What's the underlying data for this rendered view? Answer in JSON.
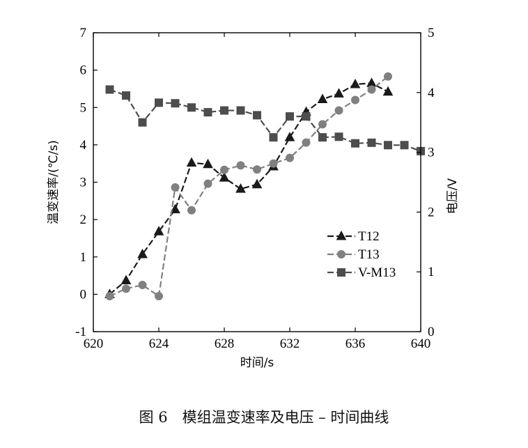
{
  "caption": "图 6　模组温变速率及电压 – 时间曲线",
  "chart_data": {
    "type": "line",
    "xlabel": "时间/s",
    "ylabel": "温变速率/(℃/s)",
    "y2label": "电压/V",
    "xlim": [
      620,
      640
    ],
    "ylim": [
      -1,
      7
    ],
    "y2lim": [
      0,
      5
    ],
    "xticks": [
      620,
      624,
      628,
      632,
      636,
      640
    ],
    "yticks": [
      -1,
      0,
      1,
      2,
      3,
      4,
      5,
      6,
      7
    ],
    "y2ticks": [
      0,
      1,
      2,
      3,
      4,
      5
    ],
    "legend_position": "center-right",
    "series": [
      {
        "name": "T12",
        "axis": "left",
        "marker": "triangle",
        "color": "#1a1a1a",
        "x": [
          621,
          622,
          623,
          624,
          625,
          626,
          627,
          628,
          629,
          630,
          631,
          632,
          633,
          634,
          635,
          636,
          637,
          638
        ],
        "y": [
          0.0,
          0.37,
          1.07,
          1.68,
          2.27,
          3.52,
          3.48,
          3.12,
          2.82,
          2.94,
          3.42,
          4.2,
          4.88,
          5.22,
          5.37,
          5.62,
          5.65,
          5.42
        ]
      },
      {
        "name": "T13",
        "axis": "left",
        "marker": "circle",
        "color": "#808080",
        "x": [
          621,
          622,
          623,
          624,
          625,
          626,
          627,
          628,
          629,
          630,
          631,
          632,
          633,
          634,
          635,
          636,
          637,
          638
        ],
        "y": [
          -0.05,
          0.15,
          0.25,
          -0.05,
          2.86,
          2.25,
          2.96,
          3.33,
          3.45,
          3.34,
          3.5,
          3.65,
          4.06,
          4.55,
          4.92,
          5.2,
          5.48,
          5.83
        ]
      },
      {
        "name": "V-M13",
        "axis": "right",
        "marker": "square",
        "color": "#4d4d4d",
        "x": [
          621,
          622,
          623,
          624,
          625,
          626,
          627,
          628,
          629,
          630,
          631,
          632,
          633,
          634,
          635,
          636,
          637,
          638,
          639,
          640
        ],
        "y": [
          4.05,
          3.95,
          3.5,
          3.83,
          3.82,
          3.75,
          3.67,
          3.7,
          3.7,
          3.62,
          3.25,
          3.6,
          3.6,
          3.25,
          3.26,
          3.15,
          3.16,
          3.12,
          3.12,
          3.02
        ]
      }
    ]
  }
}
